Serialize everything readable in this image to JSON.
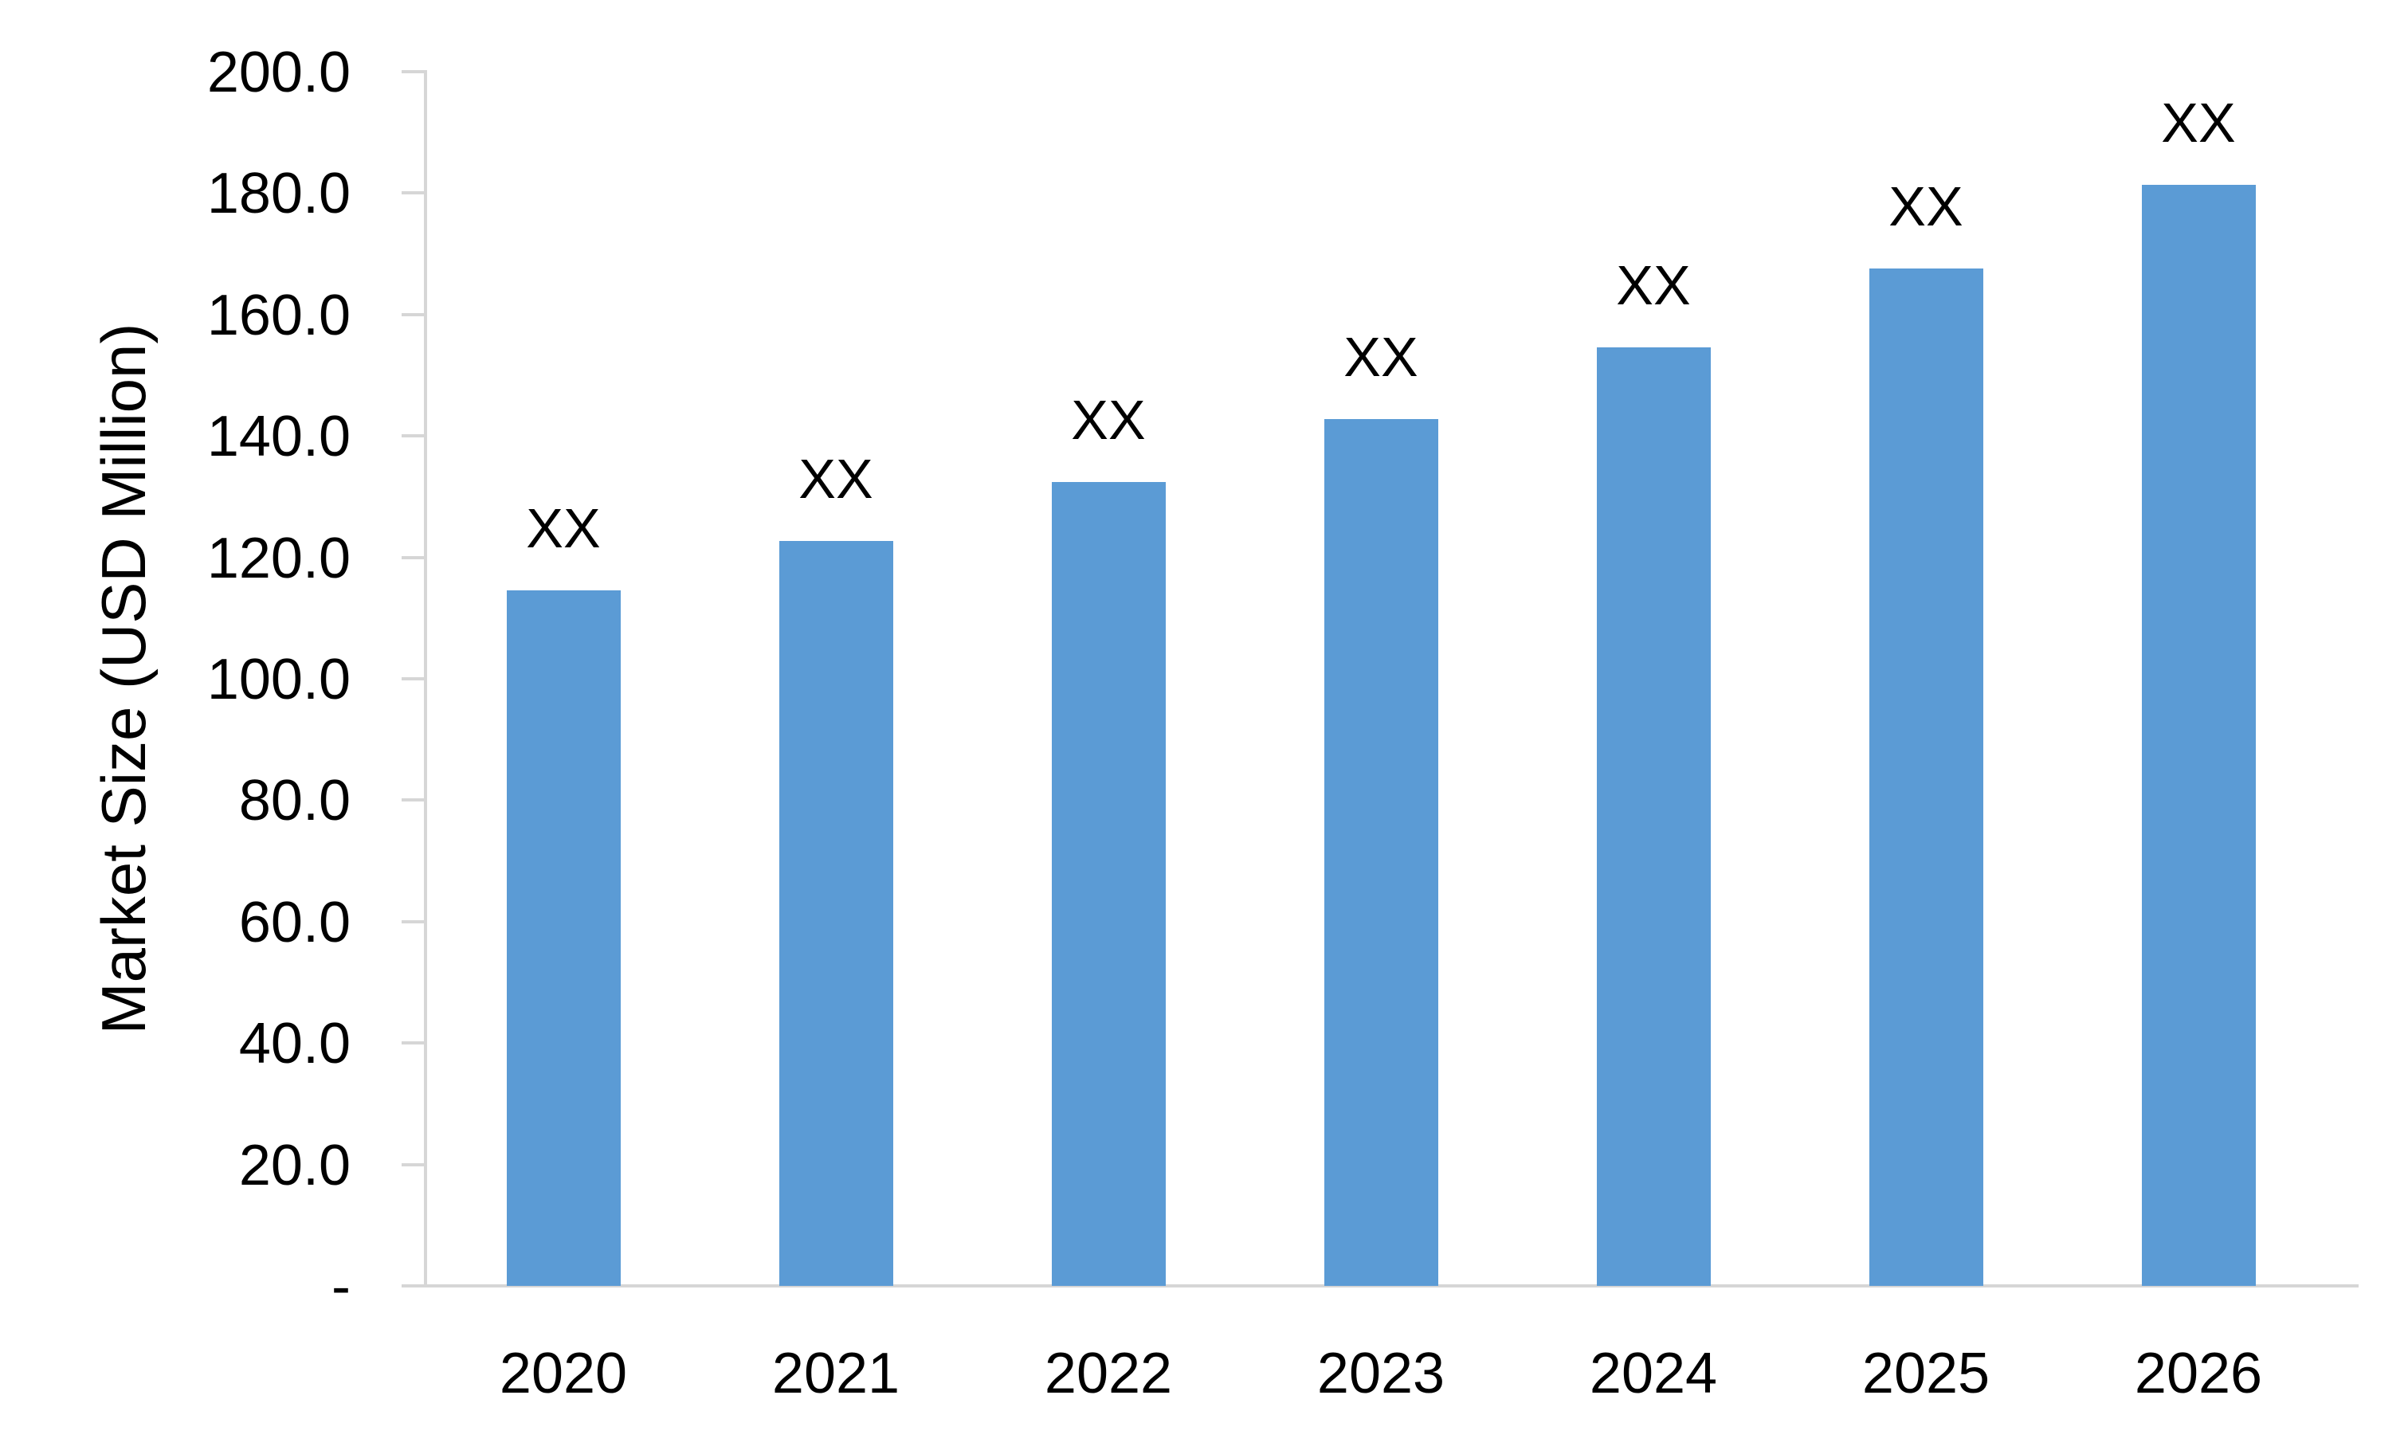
{
  "chart_data": {
    "type": "bar",
    "categories": [
      "2020",
      "2021",
      "2022",
      "2023",
      "2024",
      "2025",
      "2026"
    ],
    "values": [
      114.6,
      122.7,
      132.4,
      142.8,
      154.6,
      167.6,
      181.3
    ],
    "bar_labels": [
      "XX",
      "XX",
      "XX",
      "XX",
      "XX",
      "XX",
      "XX"
    ],
    "title": "",
    "xlabel": "",
    "ylabel": "Market Size (USD Million)",
    "ylim": [
      0,
      200
    ],
    "ytick_step": 20,
    "ytick_labels": [
      "200.0",
      "180.0",
      "160.0",
      "140.0",
      "120.0",
      "100.0",
      "80.0",
      "60.0",
      "40.0",
      "20.0",
      "-"
    ],
    "grid": false,
    "legend": false,
    "bar_color": "#5B9BD5",
    "axis_color": "#D6D6D6",
    "text_color": "#000000"
  }
}
